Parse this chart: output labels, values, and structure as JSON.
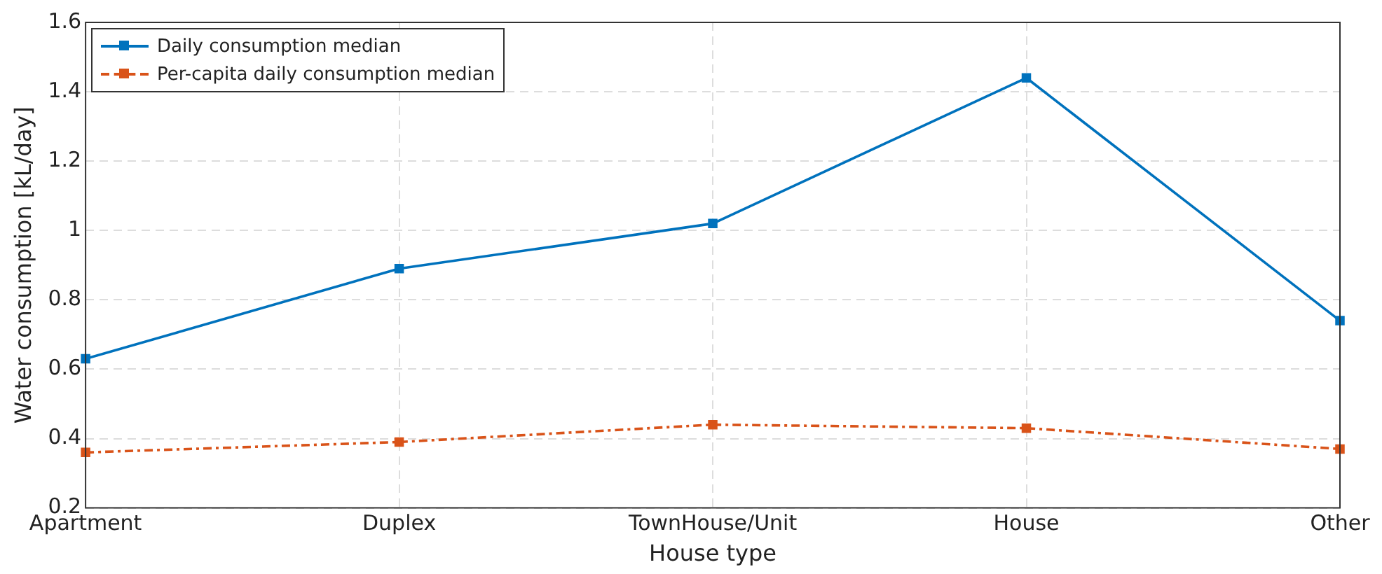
{
  "chart_data": {
    "type": "line",
    "xlabel": "House type",
    "ylabel": "Water consumption [kL/day]",
    "categories": [
      "Apartment",
      "Duplex",
      "TownHouse/Unit",
      "House",
      "Other"
    ],
    "series": [
      {
        "name": "Daily consumption median",
        "color": "#0072bd",
        "values": [
          0.63,
          0.89,
          1.02,
          1.44,
          0.74
        ],
        "line_style": "solid"
      },
      {
        "name": "Per-capita daily consumption median",
        "color": "#d95319",
        "values": [
          0.36,
          0.39,
          0.44,
          0.43,
          0.37
        ],
        "line_style": "dashed"
      }
    ],
    "ylim": [
      0.2,
      1.6
    ],
    "yticks": [
      0.2,
      0.4,
      0.6,
      0.8,
      1,
      1.2,
      1.4,
      1.6
    ],
    "grid": true,
    "legend": "top left",
    "marker": "square"
  }
}
